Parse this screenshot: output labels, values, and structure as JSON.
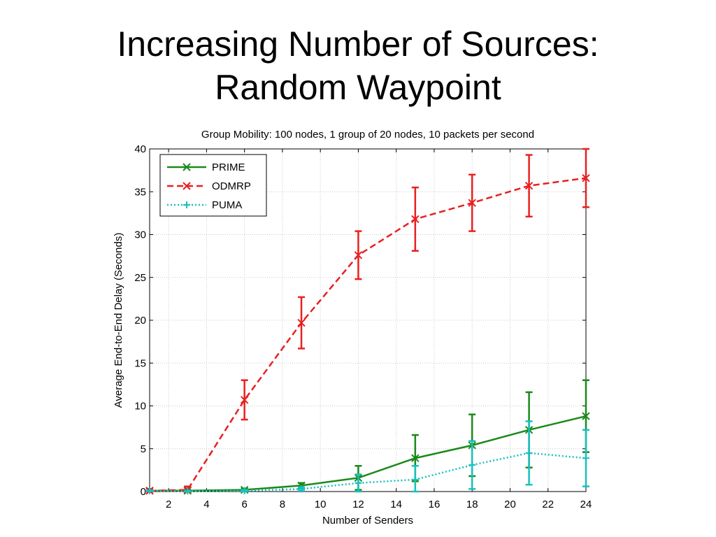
{
  "slide": {
    "title_line1": "Increasing Number of Sources:",
    "title_line2": "Random Waypoint"
  },
  "chart_data": {
    "type": "line",
    "title": "Group Mobility: 100 nodes, 1 group of 20 nodes, 10 packets per second",
    "xlabel": "Number of Senders",
    "ylabel": "Average End-to-End Delay (Seconds)",
    "xlim": [
      1,
      24
    ],
    "ylim": [
      0,
      40
    ],
    "xticks": [
      2,
      4,
      6,
      8,
      10,
      12,
      14,
      16,
      18,
      20,
      22,
      24
    ],
    "yticks": [
      0,
      5,
      10,
      15,
      20,
      25,
      30,
      35,
      40
    ],
    "grid": true,
    "legend_position": "top-left",
    "series": [
      {
        "name": "PRIME",
        "color": "#1a8a1a",
        "line_style": "solid",
        "marker": "x",
        "x": [
          1,
          3,
          6,
          9,
          12,
          15,
          18,
          21,
          24
        ],
        "y": [
          0.1,
          0.1,
          0.2,
          0.7,
          1.6,
          3.9,
          5.4,
          7.2,
          8.8
        ],
        "err": [
          0.1,
          0.1,
          0.15,
          0.3,
          1.4,
          2.7,
          3.6,
          4.4,
          4.2
        ]
      },
      {
        "name": "ODMRP",
        "color": "#e82020",
        "line_style": "dashed",
        "marker": "x",
        "x": [
          1,
          3,
          6,
          9,
          12,
          15,
          18,
          21,
          24
        ],
        "y": [
          0.1,
          0.2,
          10.7,
          19.7,
          27.6,
          31.8,
          33.7,
          35.7,
          36.6
        ],
        "err": [
          0.2,
          0.4,
          2.3,
          3.0,
          2.8,
          3.7,
          3.3,
          3.6,
          3.4
        ]
      },
      {
        "name": "PUMA",
        "color": "#18c0c0",
        "line_style": "dotted",
        "marker": "+",
        "x": [
          1,
          3,
          6,
          9,
          12,
          15,
          18,
          21,
          24
        ],
        "y": [
          0.1,
          0.05,
          0.1,
          0.3,
          1.0,
          1.4,
          3.1,
          4.5,
          3.9
        ],
        "err": [
          0.05,
          0.05,
          0.1,
          0.2,
          1.0,
          1.6,
          2.8,
          3.7,
          3.3
        ]
      }
    ]
  }
}
